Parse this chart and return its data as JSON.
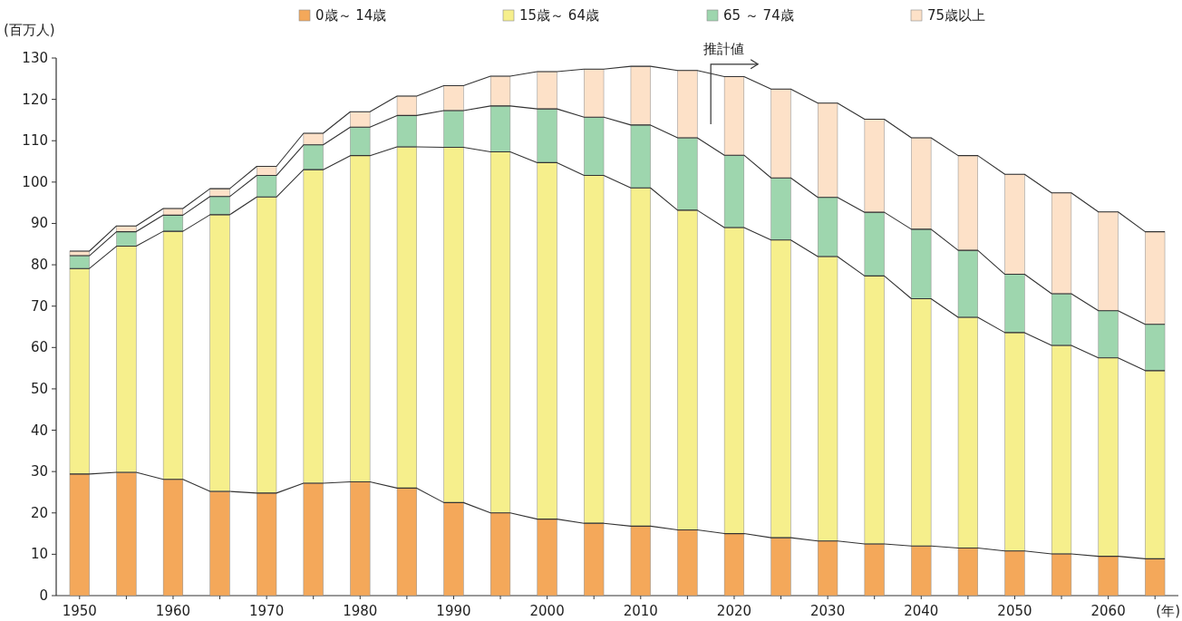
{
  "chart_data": {
    "type": "bar",
    "stacked": true,
    "ylabel": "(百万人)",
    "xlabel": "(年)",
    "categories": [
      "1950",
      null,
      "1960",
      null,
      "1970",
      null,
      "1980",
      null,
      "1990",
      null,
      "2000",
      null,
      "2010",
      null,
      "2020",
      null,
      "2030",
      null,
      "2040",
      null,
      "2050",
      null,
      "2060",
      null
    ],
    "series": [
      {
        "name": "0歳～ 14歳",
        "color": "#f4a85a",
        "values": [
          29.4,
          29.8,
          28.1,
          25.2,
          24.8,
          27.2,
          27.5,
          26.0,
          22.5,
          20.0,
          18.5,
          17.5,
          16.8,
          15.9,
          15.0,
          14.0,
          13.2,
          12.5,
          12.0,
          11.5,
          10.8,
          10.1,
          9.5,
          8.9
        ]
      },
      {
        "name": "15歳～ 64歳",
        "color": "#f6ef8c",
        "values": [
          49.7,
          54.7,
          60.0,
          66.9,
          71.6,
          75.8,
          78.9,
          82.5,
          85.9,
          87.3,
          86.2,
          84.1,
          81.8,
          77.3,
          74.0,
          72.0,
          68.8,
          64.8,
          59.8,
          55.8,
          52.8,
          50.4,
          48.0,
          45.5
        ]
      },
      {
        "name": "65 ～ 74歳",
        "color": "#9ed6ae",
        "values": [
          3.1,
          3.5,
          3.9,
          4.4,
          5.2,
          6.0,
          6.9,
          7.6,
          8.9,
          11.1,
          13.0,
          14.1,
          15.2,
          17.5,
          17.5,
          15.0,
          14.3,
          15.4,
          16.8,
          16.2,
          14.1,
          12.5,
          11.4,
          11.2
        ]
      },
      {
        "name": "75歳以上",
        "color": "#fde1c8",
        "values": [
          1.1,
          1.4,
          1.6,
          1.9,
          2.2,
          2.8,
          3.7,
          4.7,
          6.0,
          7.2,
          9.0,
          11.6,
          14.2,
          16.3,
          19.0,
          21.5,
          22.8,
          22.5,
          22.1,
          22.9,
          24.2,
          24.4,
          23.9,
          22.4
        ]
      }
    ],
    "ylim": [
      0,
      130
    ],
    "yticks": [
      0,
      10,
      20,
      30,
      40,
      50,
      60,
      70,
      80,
      90,
      100,
      110,
      120,
      130
    ],
    "legend": "top",
    "annotations": [
      "推計値"
    ]
  }
}
